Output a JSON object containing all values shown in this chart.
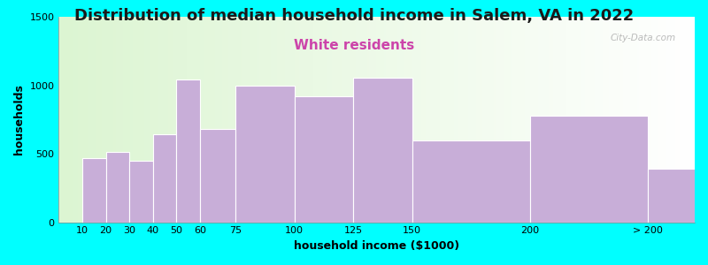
{
  "title": "Distribution of median household income in Salem, VA in 2022",
  "subtitle": "White residents",
  "xlabel": "household income ($1000)",
  "ylabel": "households",
  "background_color": "#00FFFF",
  "bar_color": "#c8aed8",
  "bar_edge_color": "#ffffff",
  "x_positions": [
    10,
    20,
    30,
    40,
    50,
    60,
    75,
    100,
    125,
    150,
    200,
    250
  ],
  "x_widths": [
    10,
    10,
    10,
    10,
    10,
    15,
    25,
    25,
    25,
    50,
    50,
    50
  ],
  "values": [
    470,
    515,
    450,
    640,
    1040,
    680,
    1000,
    920,
    1055,
    600,
    780,
    390
  ],
  "tick_labels": [
    "10",
    "20",
    "30",
    "40",
    "50",
    "60",
    "75",
    "100",
    "125",
    "150",
    "200",
    "> 200"
  ],
  "tick_positions": [
    10,
    20,
    30,
    40,
    50,
    60,
    75,
    100,
    125,
    150,
    200,
    250
  ],
  "ylim": [
    0,
    1500
  ],
  "xlim": [
    0,
    270
  ],
  "yticks": [
    0,
    500,
    1000,
    1500
  ],
  "title_fontsize": 13,
  "subtitle_fontsize": 11,
  "subtitle_color": "#cc44aa",
  "axis_label_fontsize": 9,
  "tick_fontsize": 8,
  "watermark": "City-Data.com"
}
